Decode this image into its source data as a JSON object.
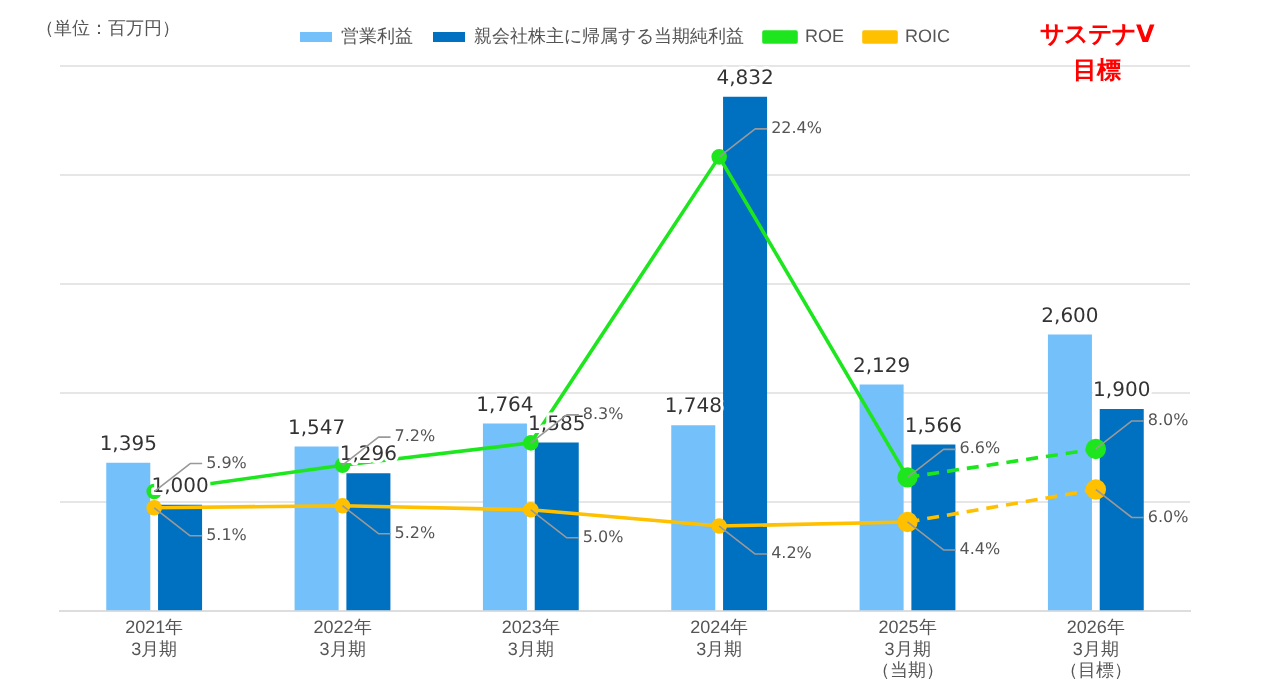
{
  "chart_data": {
    "type": "bar",
    "categories": [
      "2021年3月期",
      "2022年3月期",
      "2023年3月期",
      "2024年3月期",
      "2025年3月期（当期）",
      "2026年3月期（目標）"
    ],
    "series": [
      {
        "name": "営業利益",
        "color": "#73c0fb",
        "values": [
          1395,
          1547,
          1764,
          1748,
          2129,
          2600
        ],
        "value_labels": [
          "1,395",
          "1,547",
          "1,764",
          "1,748",
          "2,129",
          "2,600"
        ]
      },
      {
        "name": "親会社株主に帰属する当期純利益",
        "color": "#0070c0",
        "values": [
          1000,
          1296,
          1585,
          4832,
          1566,
          1900
        ],
        "value_labels": [
          "1,000",
          "1,296",
          "1,585",
          "4,832",
          "1,566",
          "1,900"
        ]
      },
      {
        "name": "ROE",
        "type": "line",
        "axis": "y2",
        "color": "#1ee61e",
        "marker": "circle",
        "line_style": "solid",
        "values": [
          5.9,
          7.2,
          8.3,
          22.4,
          6.6,
          null
        ],
        "value_labels": [
          "5.9%",
          "7.2%",
          "8.3%",
          "22.4%",
          "6.6%",
          null
        ]
      },
      {
        "name": "ROIC",
        "type": "line",
        "axis": "y2",
        "color": "#ffc000",
        "marker": "circle",
        "line_style": "solid",
        "values": [
          5.1,
          5.2,
          5.0,
          4.2,
          4.4,
          null
        ],
        "value_labels": [
          "5.1%",
          "5.2%",
          "5.0%",
          "4.2%",
          "4.4%",
          null
        ]
      },
      {
        "type": "line",
        "axis": "y2",
        "color": "#1ee61e",
        "marker": "circle",
        "line_style": "dashed",
        "values": [
          null,
          null,
          null,
          null,
          6.6,
          8.0
        ],
        "value_labels": [
          null,
          null,
          null,
          null,
          null,
          "8.0%"
        ]
      },
      {
        "type": "line",
        "axis": "y2",
        "color": "#ffc000",
        "marker": "circle",
        "line_style": "dashed",
        "values": [
          null,
          null,
          null,
          null,
          4.4,
          6.0
        ],
        "value_labels": [
          null,
          null,
          null,
          null,
          null,
          "6.0%"
        ]
      }
    ],
    "tick_labels": "x",
    "grid": "y",
    "legend": "top",
    "annotations": [
      "（単位：百万円）",
      "サステナV\n目標"
    ]
  }
}
